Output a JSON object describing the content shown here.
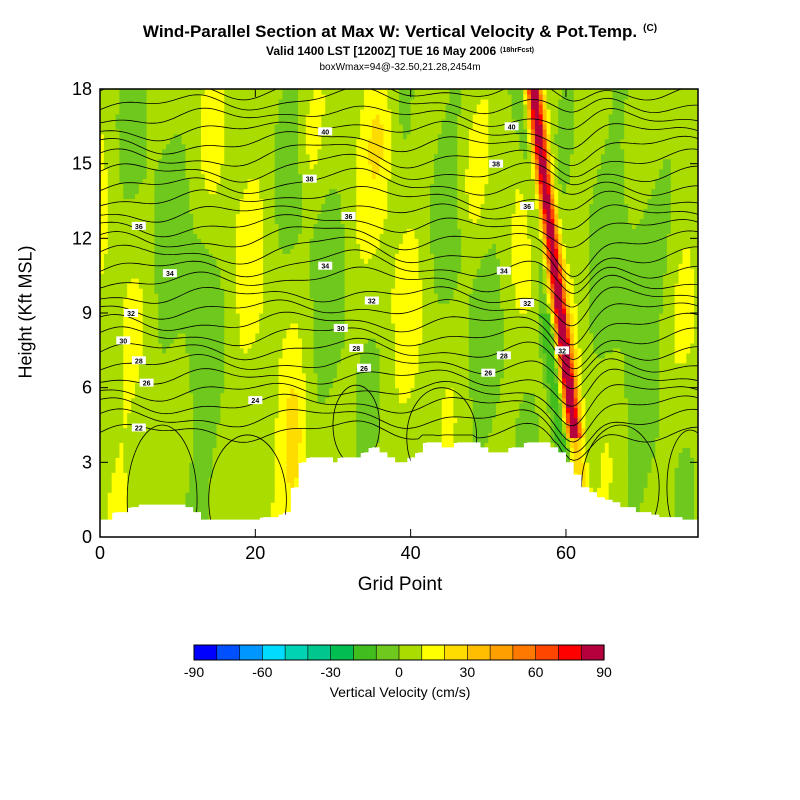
{
  "chart_data": {
    "type": "heatmap",
    "title": "Wind-Parallel Section at Max W: Vertical Velocity & Pot.Temp.",
    "copyright": "(C)",
    "subtitle": "Valid 1400 LST [1200Z] TUE 16 May 2006",
    "forecast_note": "(18hrFcst)",
    "info": "boxWmax=94@-32.50,21.28,2454m",
    "xlabel": "Grid Point",
    "ylabel": "Height (Kft MSL)",
    "xlim": [
      0,
      77
    ],
    "ylim": [
      0,
      18
    ],
    "xticks": [
      0,
      20,
      40,
      60
    ],
    "yticks": [
      0,
      3,
      6,
      9,
      12,
      15,
      18
    ],
    "colorbar": {
      "title": "Vertical Velocity (cm/s)",
      "levels": [
        -90,
        -80,
        -70,
        -60,
        -50,
        -40,
        -30,
        -20,
        -10,
        0,
        10,
        20,
        30,
        40,
        50,
        60,
        70,
        80,
        90
      ],
      "tick_labels": [
        -90,
        -60,
        -30,
        0,
        30,
        60,
        90
      ],
      "colors": [
        "#0000ff",
        "#0050ff",
        "#0096ff",
        "#00dcff",
        "#00d2b4",
        "#00c88c",
        "#00be50",
        "#41be1e",
        "#6ec81e",
        "#aadc00",
        "#ffff00",
        "#ffdc00",
        "#ffbe00",
        "#ffa000",
        "#ff7800",
        "#ff4600",
        "#ff0000",
        "#b4003c"
      ]
    },
    "terrain_heights_kft": [
      0.7,
      0.7,
      1.0,
      1.0,
      1.2,
      1.3,
      1.3,
      1.3,
      1.3,
      1.3,
      1.3,
      1.2,
      1.0,
      0.7,
      0.7,
      0.7,
      0.7,
      0.7,
      0.7,
      0.7,
      0.7,
      0.8,
      0.8,
      0.9,
      1.0,
      2.0,
      3.0,
      3.2,
      3.2,
      3.2,
      3.0,
      3.2,
      3.2,
      3.2,
      3.4,
      3.6,
      3.4,
      3.2,
      3.0,
      3.0,
      3.2,
      3.4,
      3.8,
      3.8,
      3.6,
      3.6,
      3.8,
      3.8,
      3.8,
      3.6,
      3.4,
      3.4,
      3.4,
      3.6,
      3.6,
      3.8,
      3.8,
      3.8,
      3.6,
      3.4,
      3.0,
      2.5,
      2.0,
      1.8,
      1.6,
      1.5,
      1.4,
      1.2,
      1.2,
      1.0,
      1.0,
      0.9,
      0.8,
      0.8,
      0.8,
      0.7,
      0.7,
      0.7
    ],
    "isentrope_labels": [
      {
        "text": "40",
        "x": 29,
        "y": 16.3
      },
      {
        "text": "40",
        "x": 53,
        "y": 16.5
      },
      {
        "text": "38",
        "x": 27,
        "y": 14.4
      },
      {
        "text": "38",
        "x": 51,
        "y": 15.0
      },
      {
        "text": "36",
        "x": 32,
        "y": 12.9
      },
      {
        "text": "36",
        "x": 55,
        "y": 13.3
      },
      {
        "text": "36",
        "x": 5,
        "y": 12.5
      },
      {
        "text": "34",
        "x": 9,
        "y": 10.6
      },
      {
        "text": "34",
        "x": 29,
        "y": 10.9
      },
      {
        "text": "34",
        "x": 52,
        "y": 10.7
      },
      {
        "text": "32",
        "x": 35,
        "y": 9.5
      },
      {
        "text": "32",
        "x": 55,
        "y": 9.4
      },
      {
        "text": "32",
        "x": 4,
        "y": 9.0
      },
      {
        "text": "30",
        "x": 31,
        "y": 8.4
      },
      {
        "text": "30",
        "x": 3,
        "y": 7.9
      },
      {
        "text": "28",
        "x": 33,
        "y": 7.6
      },
      {
        "text": "28",
        "x": 52,
        "y": 7.3
      },
      {
        "text": "28",
        "x": 5,
        "y": 7.1
      },
      {
        "text": "26",
        "x": 34,
        "y": 6.8
      },
      {
        "text": "26",
        "x": 50,
        "y": 6.6
      },
      {
        "text": "26",
        "x": 6,
        "y": 6.2
      },
      {
        "text": "24",
        "x": 20,
        "y": 5.5
      },
      {
        "text": "22",
        "x": 5,
        "y": 4.4
      },
      {
        "text": "32",
        "x": 59.5,
        "y": 7.5
      }
    ]
  }
}
